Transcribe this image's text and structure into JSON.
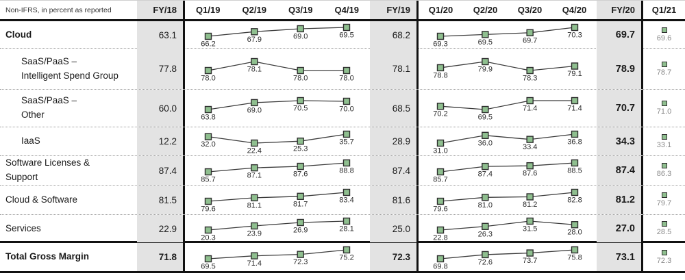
{
  "header": {
    "meta": "Non-IFRS, in percent as reported",
    "fy18": "FY/18",
    "q19": [
      "Q1/19",
      "Q2/19",
      "Q3/19",
      "Q4/19"
    ],
    "fy19": "FY/19",
    "q20": [
      "Q1/20",
      "Q2/20",
      "Q3/20",
      "Q4/20"
    ],
    "fy20": "FY/20",
    "q121": "Q1/21"
  },
  "colors": {
    "marker_fill": "#8fbf8f",
    "marker_border": "#2d2d2d",
    "line": "#3a3a3a",
    "fy_column_bg": "#e3e3e3",
    "q121_value_text": "#8a8a8a",
    "separator": "#111111"
  },
  "chart_data": {
    "type": "table",
    "title": "Non-IFRS, in percent as reported",
    "sparkline_type": "line",
    "columns": [
      "FY/18",
      "Q1/19",
      "Q2/19",
      "Q3/19",
      "Q4/19",
      "FY/19",
      "Q1/20",
      "Q2/20",
      "Q3/20",
      "Q4/20",
      "FY/20",
      "Q1/21"
    ],
    "rows": [
      {
        "label": "Cloud",
        "label2": "",
        "bold": true,
        "indent": false,
        "total": false,
        "fy18": 63.1,
        "q19": [
          66.2,
          67.9,
          69.0,
          69.5
        ],
        "fy19": 68.2,
        "q20": [
          69.3,
          69.5,
          69.7,
          70.3
        ],
        "fy20": 69.7,
        "q121": 69.6
      },
      {
        "label": "SaaS/PaaS –",
        "label2": "Intelligent Spend Group",
        "bold": false,
        "indent": true,
        "total": false,
        "fy18": 77.8,
        "q19": [
          78.0,
          78.1,
          78.0,
          78.0
        ],
        "fy19": 78.1,
        "q20": [
          78.8,
          79.9,
          78.3,
          79.1
        ],
        "fy20": 78.9,
        "q121": 78.7
      },
      {
        "label": "SaaS/PaaS –",
        "label2": "Other",
        "bold": false,
        "indent": true,
        "total": false,
        "fy18": 60.0,
        "q19": [
          63.8,
          69.0,
          70.5,
          70.0
        ],
        "fy19": 68.5,
        "q20": [
          70.2,
          69.5,
          71.4,
          71.4
        ],
        "fy20": 70.7,
        "q121": 71.0
      },
      {
        "label": "IaaS",
        "label2": "",
        "bold": false,
        "indent": true,
        "total": false,
        "fy18": 12.2,
        "q19": [
          32.0,
          22.4,
          25.3,
          35.7
        ],
        "fy19": 28.9,
        "q20": [
          31.0,
          36.0,
          33.4,
          36.8
        ],
        "fy20": 34.3,
        "q121": 33.1
      },
      {
        "label": "Software Licenses &",
        "label2": "Support",
        "bold": false,
        "indent": false,
        "total": false,
        "fy18": 87.4,
        "q19": [
          85.7,
          87.1,
          87.6,
          88.8
        ],
        "fy19": 87.4,
        "q20": [
          85.7,
          87.4,
          87.6,
          88.5
        ],
        "fy20": 87.4,
        "q121": 86.3
      },
      {
        "label": "Cloud & Software",
        "label2": "",
        "bold": false,
        "indent": false,
        "total": false,
        "fy18": 81.5,
        "q19": [
          79.6,
          81.1,
          81.7,
          83.4
        ],
        "fy19": 81.6,
        "q20": [
          79.6,
          81.0,
          81.2,
          82.8
        ],
        "fy20": 81.2,
        "q121": 79.7
      },
      {
        "label": "Services",
        "label2": "",
        "bold": false,
        "indent": false,
        "total": false,
        "fy18": 22.9,
        "q19": [
          20.3,
          23.9,
          26.9,
          28.1
        ],
        "fy19": 25.0,
        "q20": [
          22.8,
          26.3,
          31.5,
          28.0
        ],
        "fy20": 27.0,
        "q121": 28.5
      },
      {
        "label": "Total Gross Margin",
        "label2": "",
        "bold": true,
        "indent": false,
        "total": true,
        "fy18": 71.8,
        "q19": [
          69.5,
          71.4,
          72.3,
          75.2
        ],
        "fy19": 72.3,
        "q20": [
          69.8,
          72.6,
          73.7,
          75.8
        ],
        "fy20": 73.1,
        "q121": 72.3
      }
    ]
  }
}
